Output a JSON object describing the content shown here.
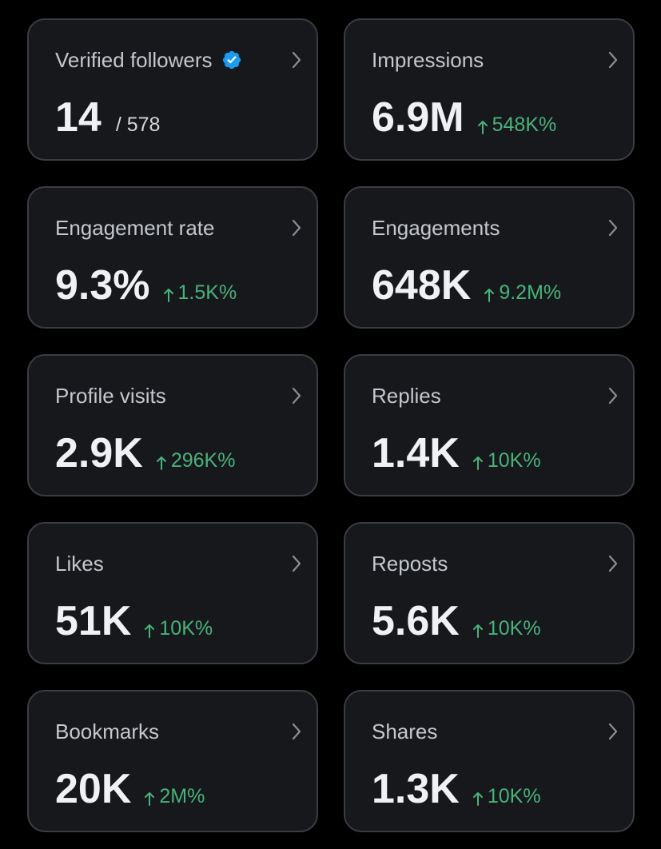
{
  "colors": {
    "background": "#000000",
    "card": "#16181c",
    "card_border": "#3a3d42",
    "label": "#c4c7cb",
    "value": "#eff1f3",
    "positive": "#48b37a",
    "verified_badge": "#1d9bf0"
  },
  "icons": {
    "verified": "verified-badge-icon",
    "chevron": "chevron-right-icon",
    "arrow": "arrow-up-icon"
  },
  "metrics": [
    {
      "label": "Verified followers",
      "value": "14",
      "total": "/ 578",
      "change": ""
    },
    {
      "label": "Impressions",
      "value": "6.9M",
      "total": "",
      "change": "548K%"
    },
    {
      "label": "Engagement rate",
      "value": "9.3%",
      "total": "",
      "change": "1.5K%"
    },
    {
      "label": "Engagements",
      "value": "648K",
      "total": "",
      "change": "9.2M%"
    },
    {
      "label": "Profile visits",
      "value": "2.9K",
      "total": "",
      "change": "296K%"
    },
    {
      "label": "Replies",
      "value": "1.4K",
      "total": "",
      "change": "10K%"
    },
    {
      "label": "Likes",
      "value": "51K",
      "total": "",
      "change": "10K%"
    },
    {
      "label": "Reposts",
      "value": "5.6K",
      "total": "",
      "change": "10K%"
    },
    {
      "label": "Bookmarks",
      "value": "20K",
      "total": "",
      "change": "2M%"
    },
    {
      "label": "Shares",
      "value": "1.3K",
      "total": "",
      "change": "10K%"
    }
  ]
}
